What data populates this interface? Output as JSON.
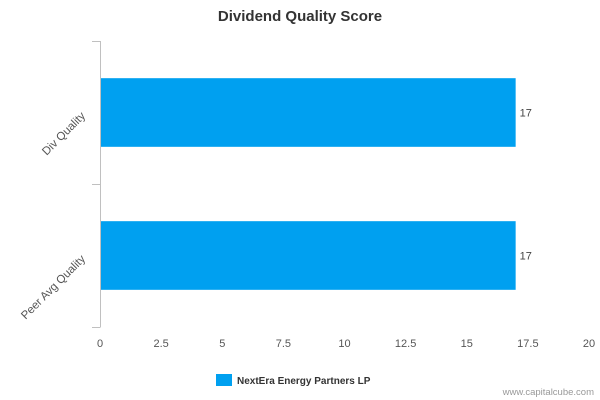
{
  "chart_data": {
    "type": "bar",
    "orientation": "horizontal",
    "title": "Dividend Quality Score",
    "categories": [
      "Div Quality",
      "Peer Avg Quality"
    ],
    "series": [
      {
        "name": "NextEra Energy Partners LP",
        "values": [
          17,
          17
        ],
        "color": "#00a0f0"
      }
    ],
    "xlim": [
      0,
      20
    ],
    "x_ticks": [
      "0",
      "2.5",
      "5",
      "7.5",
      "10",
      "12.5",
      "15",
      "17.5",
      "20"
    ],
    "data_labels": [
      "17",
      "17"
    ],
    "grid": false,
    "legend_position": "bottom"
  },
  "credit": "www.capitalcube.com"
}
